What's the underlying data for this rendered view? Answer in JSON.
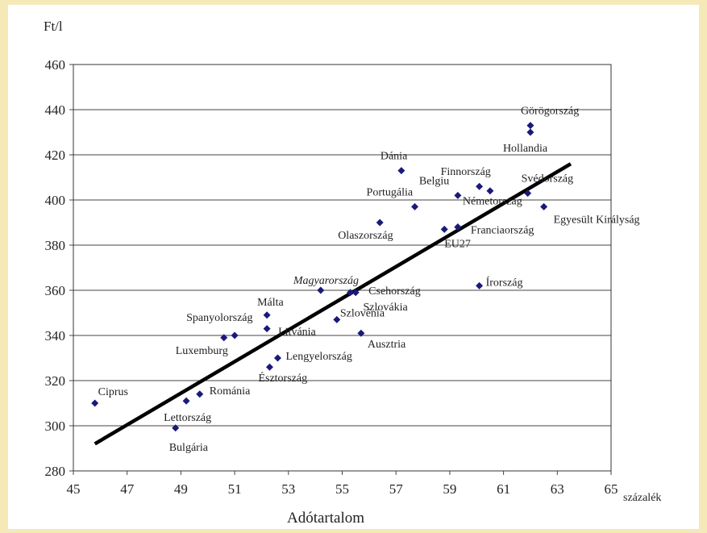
{
  "chart_data": {
    "type": "scatter",
    "title": "",
    "xlabel": "Adótartalom",
    "xunit": "százalék",
    "ylabel": "Ft/l",
    "xlim": [
      45,
      65
    ],
    "ylim": [
      280,
      460
    ],
    "xticks": [
      "45",
      "47",
      "49",
      "51",
      "53",
      "55",
      "57",
      "59",
      "61",
      "63",
      "65"
    ],
    "yticks": [
      "280",
      "300",
      "320",
      "340",
      "360",
      "380",
      "400",
      "420",
      "440",
      "460"
    ],
    "grid": "horizontal",
    "marker_color": "#1a1a7a",
    "trendline_color": "#000000",
    "trendline": {
      "x": [
        45.8,
        63.5
      ],
      "y": [
        292,
        416
      ]
    },
    "points": [
      {
        "label": "Görögország",
        "x": 62.0,
        "y": 433
      },
      {
        "label": "Hollandia",
        "x": 62.0,
        "y": 430
      },
      {
        "label": "Dánia",
        "x": 57.2,
        "y": 413
      },
      {
        "label": "Finnország",
        "x": 60.1,
        "y": 406
      },
      {
        "label": "",
        "x": 60.5,
        "y": 404
      },
      {
        "label": "Svédország",
        "x": 61.9,
        "y": 403
      },
      {
        "label": "Belgiu",
        "x": 59.3,
        "y": 402
      },
      {
        "label": "Portugália",
        "x": 57.7,
        "y": 397
      },
      {
        "label": "Németország",
        "x": 59.3,
        "y": 388
      },
      {
        "label": "Egyesült Királyság",
        "x": 62.5,
        "y": 397
      },
      {
        "label": "Olaszország",
        "x": 56.4,
        "y": 390
      },
      {
        "label": "EU27",
        "x": 58.8,
        "y": 387
      },
      {
        "label": "Franciaország",
        "x": 59.3,
        "y": 388
      },
      {
        "label": "Írország",
        "x": 60.1,
        "y": 362
      },
      {
        "label": "Magyarország",
        "x": 54.2,
        "y": 360
      },
      {
        "label": "Csehország",
        "x": 55.5,
        "y": 359
      },
      {
        "label": "Szlovákia",
        "x": 55.3,
        "y": 359
      },
      {
        "label": "Szlovénia",
        "x": 54.8,
        "y": 347
      },
      {
        "label": "Ausztria",
        "x": 55.7,
        "y": 341
      },
      {
        "label": "Málta",
        "x": 52.2,
        "y": 349
      },
      {
        "label": "Spanyolország",
        "x": 51.0,
        "y": 340
      },
      {
        "label": "Litvánia",
        "x": 52.2,
        "y": 343
      },
      {
        "label": "Luxemburg",
        "x": 50.6,
        "y": 339
      },
      {
        "label": "Lengyelország",
        "x": 52.6,
        "y": 330
      },
      {
        "label": "Észtország",
        "x": 52.3,
        "y": 326
      },
      {
        "label": "Ciprus",
        "x": 45.8,
        "y": 310
      },
      {
        "label": "Románia",
        "x": 49.7,
        "y": 314
      },
      {
        "label": "Lettország",
        "x": 49.2,
        "y": 311
      },
      {
        "label": "Bulgária",
        "x": 48.8,
        "y": 299
      }
    ]
  }
}
